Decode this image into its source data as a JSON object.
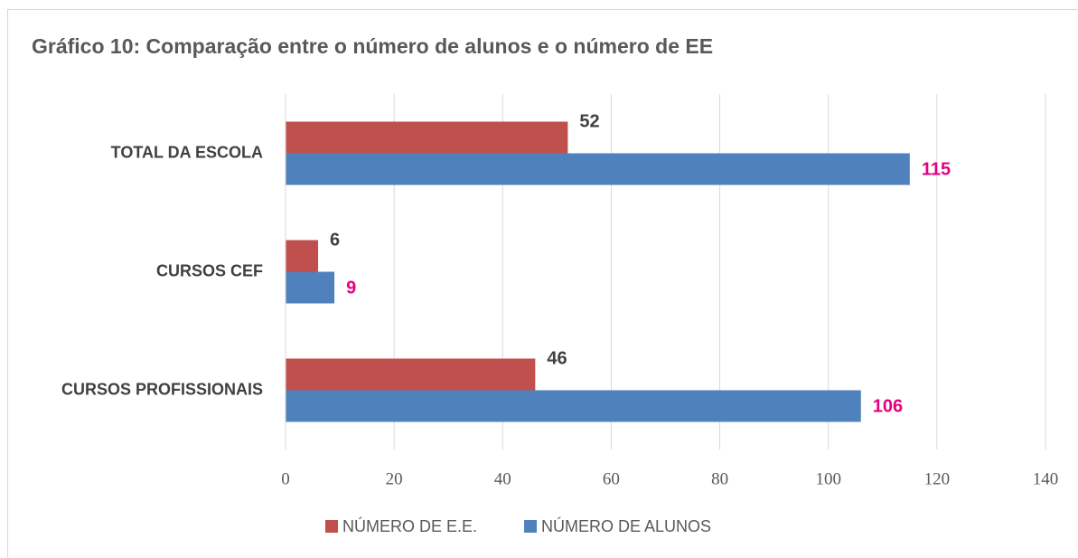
{
  "chart_data": {
    "type": "hbar",
    "title": "Gráfico 10: Comparação entre o número de alunos e o número de EE",
    "categories": [
      "TOTAL DA ESCOLA",
      "CURSOS CEF",
      "CURSOS PROFISSIONAIS"
    ],
    "series": [
      {
        "name": "NÚMERO DE E.E.",
        "color": "#c0504d",
        "label_color": "#404040",
        "values": [
          52,
          6,
          46
        ]
      },
      {
        "name": "NÚMERO DE ALUNOS",
        "color": "#4f81bd",
        "label_color": "#e6007e",
        "values": [
          115,
          9,
          106
        ]
      }
    ],
    "xlim": [
      0,
      140
    ],
    "xticks": [
      0,
      20,
      40,
      60,
      80,
      100,
      120,
      140
    ],
    "grid": true,
    "legend": "bottom"
  }
}
